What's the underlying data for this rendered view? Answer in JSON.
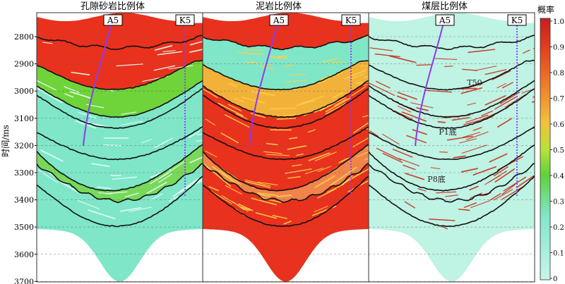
{
  "y_axis": {
    "label": "时间/ms",
    "ticks": [
      "2800",
      "2900",
      "3000",
      "3100",
      "3200",
      "3300",
      "3400",
      "3500",
      "3600",
      "3700"
    ]
  },
  "panels": [
    {
      "title": "孔隙砂岩比例体",
      "bands": [
        {
          "color": "#e8321e"
        },
        {
          "color": "#e8321e"
        },
        {
          "color": "#6fd33a"
        },
        {
          "color": "#7fe6c8"
        },
        {
          "color": "#7fe6c8"
        },
        {
          "color": "#7fe6c8"
        },
        {
          "color": "#78d85a"
        },
        {
          "color": "#7fe6c8"
        }
      ],
      "streaks": {
        "color": "#e8fff8",
        "count": 60
      },
      "horizon_labels": []
    },
    {
      "title": "泥岩比例体",
      "bands": [
        {
          "color": "#e8321e"
        },
        {
          "color": "#7fe6c8"
        },
        {
          "color": "#f2b23a"
        },
        {
          "color": "#e8321e"
        },
        {
          "color": "#e8321e"
        },
        {
          "color": "#e8321e"
        },
        {
          "color": "#f0844a"
        },
        {
          "color": "#e8321e"
        }
      ],
      "streaks": {
        "color": "#ffd24a",
        "count": 110
      },
      "horizon_labels": []
    },
    {
      "title": "煤层比例体",
      "bands": [
        {
          "color": "#bff3e4"
        },
        {
          "color": "#bff3e4"
        },
        {
          "color": "#bff3e4"
        },
        {
          "color": "#bff3e4"
        },
        {
          "color": "#bff3e4"
        },
        {
          "color": "#bff3e4"
        },
        {
          "color": "#bff3e4"
        },
        {
          "color": "#bff3e4"
        }
      ],
      "streaks": {
        "color": "#c8321e",
        "count": 95
      },
      "horizon_labels": [
        "T50",
        "P1底",
        "P8底"
      ]
    }
  ],
  "wells": [
    {
      "name": "A5",
      "color": "#8a3cf0"
    },
    {
      "name": "K5",
      "color": "#8a3cf0"
    }
  ],
  "colorbar": {
    "title": "概率",
    "ticks": [
      "1.0",
      "0.9",
      "0.8",
      "0.7",
      "0.6",
      "0.5",
      "0.4",
      "0.3",
      "0.2",
      "0.1",
      "0"
    ],
    "stops": [
      {
        "value": 0.0,
        "color": "#c8f5ee"
      },
      {
        "value": 0.25,
        "color": "#7fe6c8"
      },
      {
        "value": 0.4,
        "color": "#5fd23a"
      },
      {
        "value": 0.5,
        "color": "#b8e23a"
      },
      {
        "value": 0.6,
        "color": "#f2c23a"
      },
      {
        "value": 0.75,
        "color": "#f07a2a"
      },
      {
        "value": 0.9,
        "color": "#e03a1e"
      },
      {
        "value": 1.0,
        "color": "#c81e1e"
      }
    ]
  }
}
